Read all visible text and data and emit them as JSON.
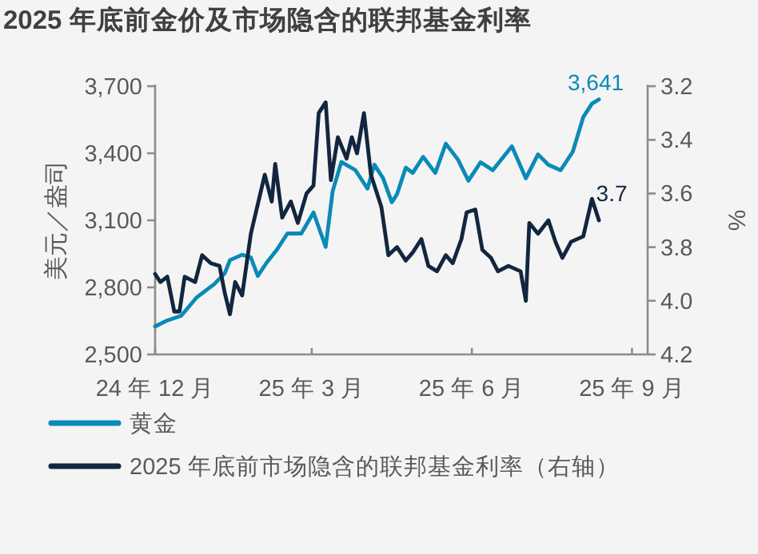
{
  "chart_data": {
    "type": "line",
    "title": "2025 年底前金价及市场隐含的联邦基金利率",
    "ylabel": "美元／盎司",
    "y2label": "%",
    "xlim": [
      "2024-12-01",
      "2025-09-10"
    ],
    "xticks": [
      {
        "value": "2024-12-01",
        "label": "24 年 12 月"
      },
      {
        "value": "2025-03-01",
        "label": "25 年 3 月"
      },
      {
        "value": "2025-06-01",
        "label": "25 年 6 月"
      },
      {
        "value": "2025-09-01",
        "label": "25 年 9 月"
      }
    ],
    "ylim": [
      2500,
      3700
    ],
    "yticks": [
      {
        "value": 2500,
        "label": "2,500"
      },
      {
        "value": 2800,
        "label": "2,800"
      },
      {
        "value": 3100,
        "label": "3,100"
      },
      {
        "value": 3400,
        "label": "3,400"
      },
      {
        "value": 3700,
        "label": "3,700"
      }
    ],
    "y2lim": [
      4.2,
      3.2
    ],
    "y2ticks": [
      {
        "value": 3.2,
        "label": "3.2"
      },
      {
        "value": 3.4,
        "label": "3.4"
      },
      {
        "value": 3.6,
        "label": "3.6"
      },
      {
        "value": 3.8,
        "label": "3.8"
      },
      {
        "value": 4.0,
        "label": "4.0"
      },
      {
        "value": 4.2,
        "label": "4.2"
      }
    ],
    "legend": "bottom",
    "grid": false,
    "series": [
      {
        "name": "黄金",
        "color": "#0a8ab8",
        "x": [
          "2024-12-01",
          "2024-12-07",
          "2024-12-16",
          "2024-12-25",
          "2025-01-04",
          "2025-01-10",
          "2025-01-13",
          "2025-01-20",
          "2025-01-25",
          "2025-01-29",
          "2025-02-03",
          "2025-02-09",
          "2025-02-15",
          "2025-02-23",
          "2025-03-02",
          "2025-03-09",
          "2025-03-13",
          "2025-03-18",
          "2025-03-26",
          "2025-04-02",
          "2025-04-06",
          "2025-04-11",
          "2025-04-16",
          "2025-04-19",
          "2025-04-24",
          "2025-04-28",
          "2025-05-04",
          "2025-05-11",
          "2025-05-17",
          "2025-05-24",
          "2025-05-30",
          "2025-06-06",
          "2025-06-13",
          "2025-06-24",
          "2025-07-02",
          "2025-07-09",
          "2025-07-15",
          "2025-07-22",
          "2025-07-29",
          "2025-08-04",
          "2025-08-09",
          "2025-08-13"
        ],
        "values": [
          2625,
          2649,
          2673,
          2756,
          2815,
          2863,
          2922,
          2946,
          2934,
          2851,
          2910,
          2969,
          3041,
          3041,
          3135,
          2981,
          3230,
          3361,
          3325,
          3242,
          3349,
          3288,
          3181,
          3217,
          3336,
          3312,
          3384,
          3312,
          3443,
          3372,
          3277,
          3360,
          3324,
          3431,
          3288,
          3395,
          3348,
          3324,
          3407,
          3562,
          3622,
          3641
        ],
        "value_labels": [
          null,
          null,
          null,
          null,
          null,
          null,
          null,
          null,
          null,
          null,
          null,
          null,
          null,
          null,
          null,
          null,
          null,
          null,
          null,
          null,
          null,
          null,
          null,
          null,
          null,
          null,
          null,
          null,
          null,
          null,
          null,
          null,
          null,
          null,
          null,
          null,
          null,
          null,
          null,
          null,
          null,
          "3,641"
        ]
      },
      {
        "name": "2025 年底前市场隐含的联邦基金利率（右轴）",
        "color": "#13263f",
        "axis": "y2",
        "x": [
          "2024-12-01",
          "2024-12-04",
          "2024-12-08",
          "2024-12-12",
          "2024-12-15",
          "2024-12-18",
          "2024-12-24",
          "2024-12-28",
          "2025-01-02",
          "2025-01-07",
          "2025-01-10",
          "2025-01-13",
          "2025-01-16",
          "2025-01-20",
          "2025-01-25",
          "2025-01-29",
          "2025-02-02",
          "2025-02-06",
          "2025-02-08",
          "2025-02-12",
          "2025-02-17",
          "2025-02-21",
          "2025-02-26",
          "2025-03-02",
          "2025-03-05",
          "2025-03-09",
          "2025-03-12",
          "2025-03-16",
          "2025-03-21",
          "2025-03-24",
          "2025-03-27",
          "2025-03-31",
          "2025-04-04",
          "2025-04-10",
          "2025-04-14",
          "2025-04-19",
          "2025-04-24",
          "2025-04-28",
          "2025-05-03",
          "2025-05-07",
          "2025-05-12",
          "2025-05-17",
          "2025-05-21",
          "2025-05-26",
          "2025-05-29",
          "2025-06-03",
          "2025-06-07",
          "2025-06-12",
          "2025-06-16",
          "2025-06-22",
          "2025-06-29",
          "2025-07-02",
          "2025-07-04",
          "2025-07-09",
          "2025-07-15",
          "2025-07-19",
          "2025-07-23",
          "2025-07-28",
          "2025-08-04",
          "2025-08-09",
          "2025-08-13"
        ],
        "values": [
          3.9,
          3.93,
          3.91,
          4.04,
          4.04,
          3.91,
          3.93,
          3.83,
          3.86,
          3.87,
          3.97,
          4.05,
          3.93,
          3.98,
          3.75,
          3.64,
          3.53,
          3.63,
          3.49,
          3.69,
          3.63,
          3.71,
          3.6,
          3.57,
          3.3,
          3.26,
          3.55,
          3.39,
          3.47,
          3.39,
          3.45,
          3.3,
          3.53,
          3.65,
          3.83,
          3.8,
          3.85,
          3.82,
          3.77,
          3.87,
          3.89,
          3.83,
          3.86,
          3.77,
          3.67,
          3.66,
          3.81,
          3.84,
          3.89,
          3.87,
          3.89,
          4.0,
          3.71,
          3.75,
          3.7,
          3.78,
          3.84,
          3.78,
          3.76,
          3.62,
          3.7
        ],
        "value_labels": [
          null,
          null,
          null,
          null,
          null,
          null,
          null,
          null,
          null,
          null,
          null,
          null,
          null,
          null,
          null,
          null,
          null,
          null,
          null,
          null,
          null,
          null,
          null,
          null,
          null,
          null,
          null,
          null,
          null,
          null,
          null,
          null,
          null,
          null,
          null,
          null,
          null,
          null,
          null,
          null,
          null,
          null,
          null,
          null,
          null,
          null,
          null,
          null,
          null,
          null,
          null,
          null,
          null,
          null,
          null,
          null,
          null,
          null,
          null,
          null,
          "3.7"
        ]
      }
    ]
  }
}
